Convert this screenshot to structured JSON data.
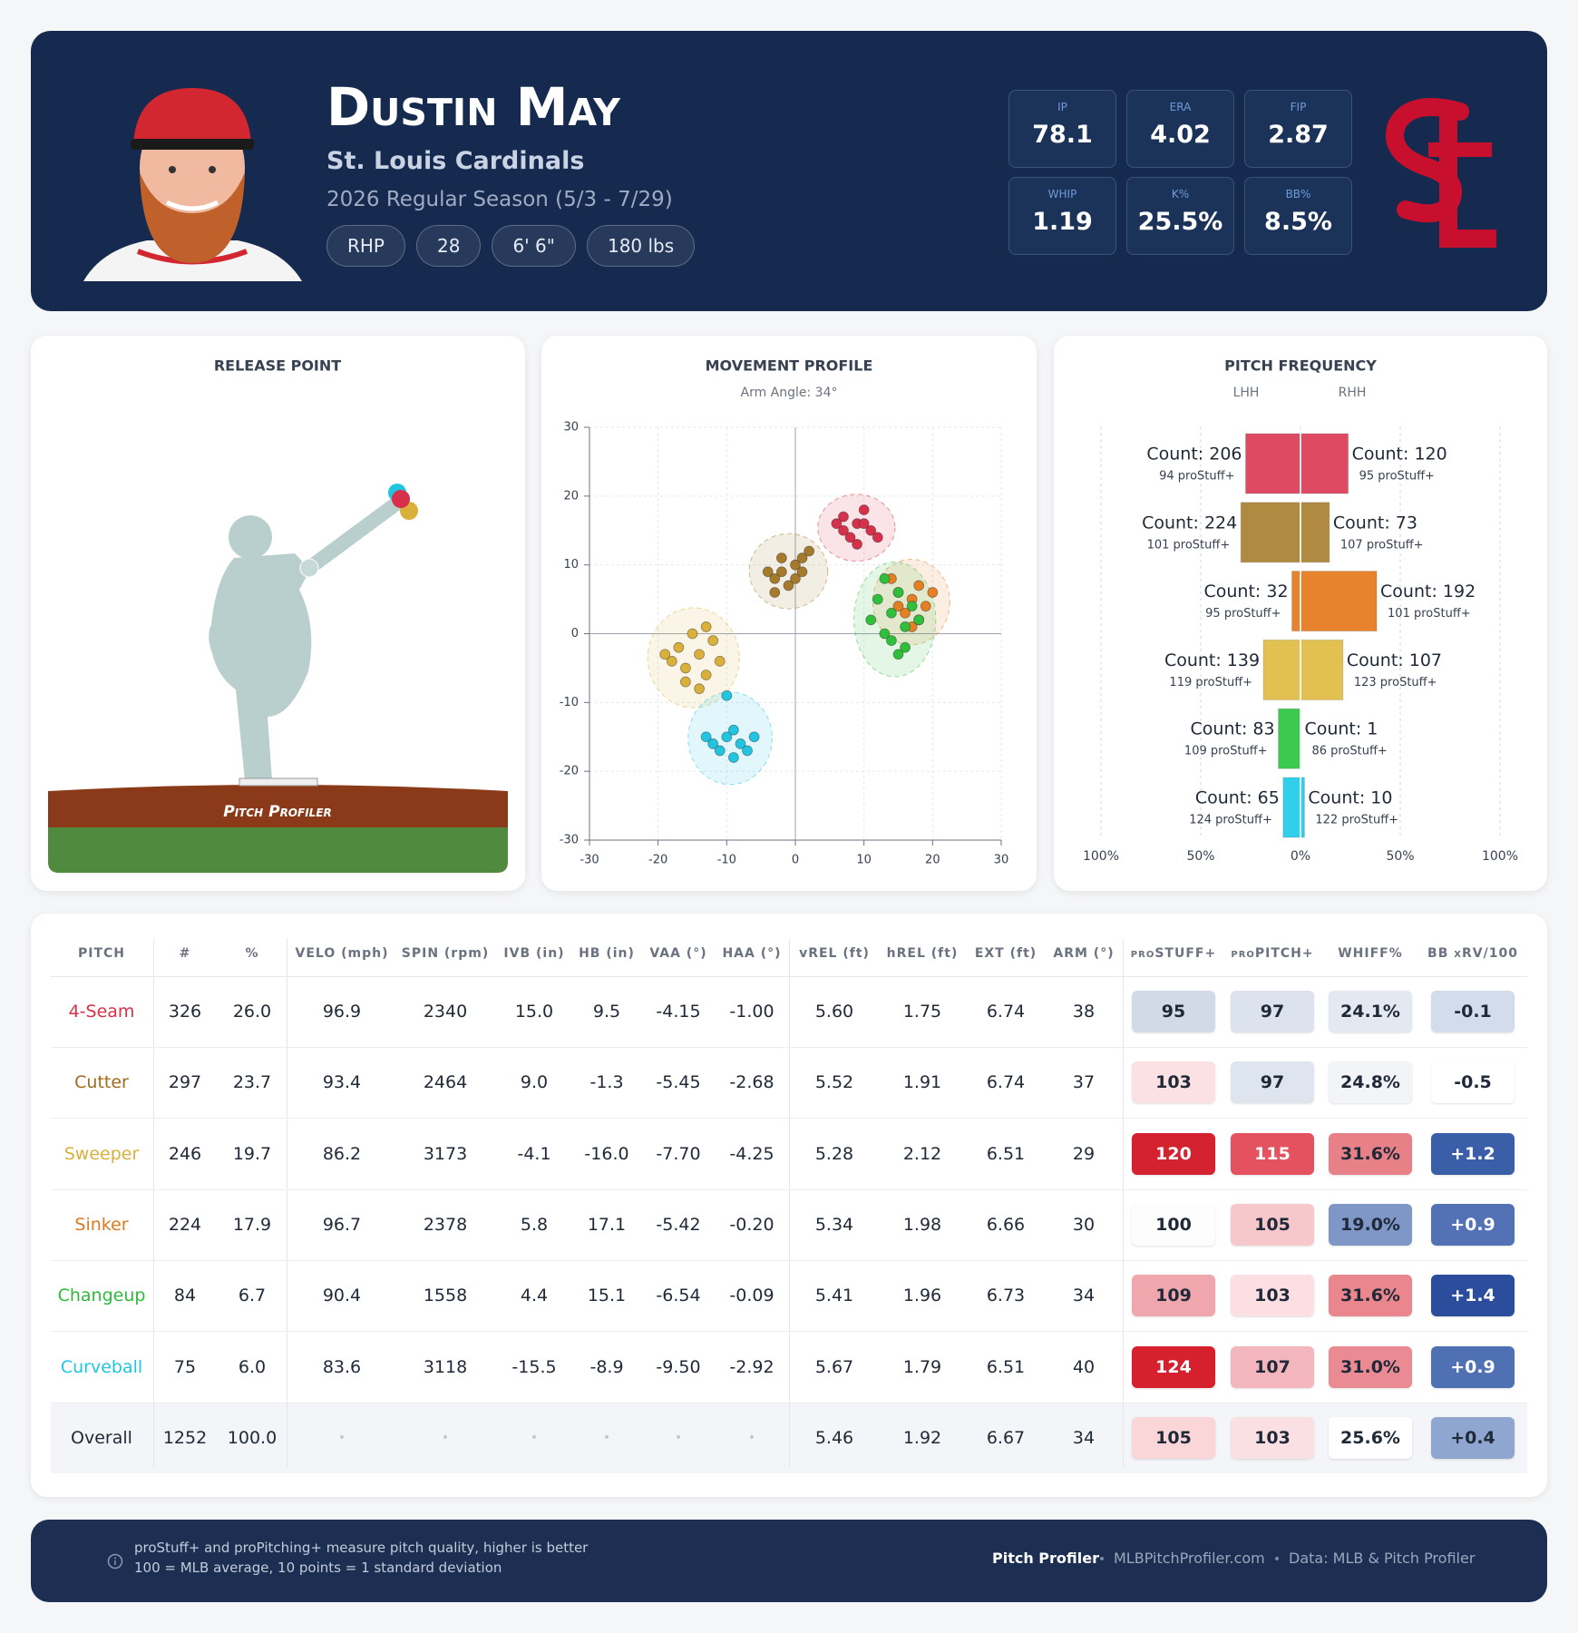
{
  "header": {
    "name": "Dustin May",
    "team": "St. Louis Cardinals",
    "season": "2026 Regular Season (5/3 - 7/29)",
    "chips": [
      "RHP",
      "28",
      "6' 6\"",
      "180 lbs"
    ],
    "stats": [
      {
        "label": "IP",
        "value": "78.1"
      },
      {
        "label": "ERA",
        "value": "4.02"
      },
      {
        "label": "FIP",
        "value": "2.87"
      },
      {
        "label": "WHIP",
        "value": "1.19"
      },
      {
        "label": "K%",
        "value": "25.5%"
      },
      {
        "label": "BB%",
        "value": "8.5%"
      }
    ]
  },
  "release_point": {
    "title": "RELEASE POINT",
    "logo": "Pitch Profiler"
  },
  "chart_data": [
    {
      "type": "scatter",
      "title": "MOVEMENT PROFILE",
      "subtitle": "Arm Angle: 34°",
      "xlim": [
        -30,
        30
      ],
      "ylim": [
        -30,
        30
      ],
      "xticks": [
        -30,
        -20,
        -10,
        0,
        10,
        20,
        30
      ],
      "yticks": [
        -30,
        -20,
        -10,
        0,
        10,
        20,
        30
      ],
      "grid": true,
      "series": [
        {
          "color": "#d6304a",
          "x": [
            7,
            9,
            11,
            8,
            10,
            6,
            12,
            9,
            7,
            10
          ],
          "y": [
            17,
            16,
            15,
            14,
            18,
            16,
            14,
            13,
            15,
            16
          ]
        },
        {
          "color": "#a57a2c",
          "x": [
            -2,
            0,
            -3,
            1,
            -1,
            -4,
            2,
            -2,
            0,
            -3,
            1
          ],
          "y": [
            9,
            10,
            8,
            11,
            7,
            9,
            12,
            11,
            8,
            6,
            9
          ]
        },
        {
          "color": "#d9b13a",
          "x": [
            -17,
            -14,
            -16,
            -13,
            -18,
            -15,
            -12,
            -16,
            -14,
            -19,
            -11,
            -13
          ],
          "y": [
            -2,
            -3,
            -5,
            -6,
            -4,
            0,
            -1,
            -7,
            -8,
            -3,
            -4,
            1
          ]
        },
        {
          "color": "#e67e22",
          "x": [
            15,
            17,
            18,
            16,
            19,
            14,
            17,
            20,
            15,
            18
          ],
          "y": [
            6,
            5,
            7,
            3,
            4,
            8,
            1,
            6,
            4,
            2
          ]
        },
        {
          "color": "#2fbf3a",
          "x": [
            12,
            14,
            16,
            13,
            15,
            17,
            11,
            14,
            16,
            13,
            18,
            15
          ],
          "y": [
            5,
            3,
            1,
            8,
            6,
            4,
            2,
            -1,
            -2,
            0,
            2,
            -3
          ]
        },
        {
          "color": "#22c5e0",
          "x": [
            -10,
            -8,
            -12,
            -7,
            -9,
            -11,
            -6,
            -9,
            -13,
            -10
          ],
          "y": [
            -15,
            -16,
            -16,
            -17,
            -14,
            -17,
            -15,
            -18,
            -15,
            -9
          ]
        }
      ]
    },
    {
      "type": "diverging_bar",
      "title": "PITCH FREQUENCY",
      "xlim": [
        -100,
        100
      ],
      "xticks": [
        {
          "value": -100,
          "label": "100%"
        },
        {
          "value": -50,
          "label": "50%"
        },
        {
          "value": 0,
          "label": "0%"
        },
        {
          "value": 50,
          "label": "50%"
        },
        {
          "value": 100,
          "label": "100%"
        }
      ],
      "colors": [
        "#df4a63",
        "#b08a40",
        "#e6832c",
        "#e3c052",
        "#3cc94f",
        "#30d0ec"
      ],
      "series": [
        {
          "name": "LHH",
          "values": [
            27.5,
            29.9,
            4.3,
            18.6,
            11.1,
            8.7
          ],
          "count_labels": [
            "Count: 206",
            "Count: 224",
            "Count: 32",
            "Count: 139",
            "Count: 83",
            "Count: 65"
          ],
          "stuff_labels": [
            "94 proStuff+",
            "101 proStuff+",
            "95 proStuff+",
            "119 proStuff+",
            "109 proStuff+",
            "124 proStuff+"
          ]
        },
        {
          "name": "RHH",
          "values": [
            23.9,
            14.5,
            38.2,
            21.3,
            0.2,
            2.0
          ],
          "count_labels": [
            "Count: 120",
            "Count: 73",
            "Count: 192",
            "Count: 107",
            "Count: 1",
            "Count: 10"
          ],
          "stuff_labels": [
            "95 proStuff+",
            "107 proStuff+",
            "101 proStuff+",
            "123 proStuff+",
            "86 proStuff+",
            "122 proStuff+"
          ]
        }
      ]
    }
  ],
  "table": {
    "columns": [
      "PITCH",
      "#",
      "%",
      "VELO (mph)",
      "SPIN (rpm)",
      "IVB (in)",
      "HB (in)",
      "VAA (°)",
      "HAA (°)",
      "vREL (ft)",
      "hREL (ft)",
      "EXT (ft)",
      "ARM (°)",
      "proSTUFF+",
      "proPITCH+",
      "WHIFF%",
      "BB xRV/100"
    ],
    "rows": [
      [
        "4-Seam",
        "326",
        "26.0",
        "96.9",
        "2340",
        "15.0",
        "9.5",
        "-4.15",
        "-1.00",
        "5.60",
        "1.75",
        "6.74",
        "38",
        "95",
        "97",
        "24.1%",
        "-0.1"
      ],
      [
        "Cutter",
        "297",
        "23.7",
        "93.4",
        "2464",
        "9.0",
        "-1.3",
        "-5.45",
        "-2.68",
        "5.52",
        "1.91",
        "6.74",
        "37",
        "103",
        "97",
        "24.8%",
        "-0.5"
      ],
      [
        "Sweeper",
        "246",
        "19.7",
        "86.2",
        "3173",
        "-4.1",
        "-16.0",
        "-7.70",
        "-4.25",
        "5.28",
        "2.12",
        "6.51",
        "29",
        "120",
        "115",
        "31.6%",
        "+1.2"
      ],
      [
        "Sinker",
        "224",
        "17.9",
        "96.7",
        "2378",
        "5.8",
        "17.1",
        "-5.42",
        "-0.20",
        "5.34",
        "1.98",
        "6.66",
        "30",
        "100",
        "105",
        "19.0%",
        "+0.9"
      ],
      [
        "Changeup",
        "84",
        "6.7",
        "90.4",
        "1558",
        "4.4",
        "15.1",
        "-6.54",
        "-0.09",
        "5.41",
        "1.96",
        "6.73",
        "34",
        "109",
        "103",
        "31.6%",
        "+1.4"
      ],
      [
        "Curveball",
        "75",
        "6.0",
        "83.6",
        "3118",
        "-15.5",
        "-8.9",
        "-9.50",
        "-2.92",
        "5.67",
        "1.79",
        "6.51",
        "40",
        "124",
        "107",
        "31.0%",
        "+0.9"
      ],
      [
        "Overall",
        "1252",
        "100.0",
        "•",
        "•",
        "•",
        "•",
        "•",
        "•",
        "5.46",
        "1.92",
        "6.67",
        "34",
        "105",
        "103",
        "25.6%",
        "+0.4"
      ]
    ],
    "name_colors": [
      "#d6304a",
      "#a06a1a",
      "#d9b13a",
      "#e0781e",
      "#2cbb3a",
      "#22c5e0",
      "#1f2937"
    ],
    "badge_colors": [
      [
        [
          "#d2dae8",
          "#1f2937"
        ],
        [
          "#dde3ee",
          "#1f2937"
        ],
        [
          "#e4e8f0",
          "#1f2937"
        ],
        [
          "#d3dceb",
          "#1f2937"
        ]
      ],
      [
        [
          "#fbe1e3",
          "#1f2937"
        ],
        [
          "#dfe5ef",
          "#1f2937"
        ],
        [
          "#f2f4f8",
          "#1f2937"
        ],
        [
          "#ffffff",
          "#1f2937"
        ]
      ],
      [
        [
          "#d42230",
          "#ffffff"
        ],
        [
          "#e3525e",
          "#ffffff"
        ],
        [
          "#e88088",
          "#1f2937"
        ],
        [
          "#3b5ea8",
          "#ffffff"
        ]
      ],
      [
        [
          "#fdfdfd",
          "#1f2937"
        ],
        [
          "#f6c7cb",
          "#1f2937"
        ],
        [
          "#7f97c7",
          "#1f2937"
        ],
        [
          "#5272b5",
          "#ffffff"
        ]
      ],
      [
        [
          "#f0a6ad",
          "#1f2937"
        ],
        [
          "#fbdfe2",
          "#1f2937"
        ],
        [
          "#ea868e",
          "#1f2937"
        ],
        [
          "#2c4c9c",
          "#ffffff"
        ]
      ],
      [
        [
          "#d6202e",
          "#ffffff"
        ],
        [
          "#f3b6bc",
          "#1f2937"
        ],
        [
          "#ea8a92",
          "#1f2937"
        ],
        [
          "#5070b4",
          "#ffffff"
        ]
      ],
      [
        [
          "#fbd6d9",
          "#1f2937"
        ],
        [
          "#fbe0e3",
          "#1f2937"
        ],
        [
          "#ffffff",
          "#1f2937"
        ],
        [
          "#8fa6d1",
          "#1f2937"
        ]
      ]
    ]
  },
  "footer": {
    "note_lines": [
      "proStuff+ and proPitching+ measure pitch quality, higher is better",
      "100 = MLB average, 10 points = 1 standard deviation"
    ],
    "brand": "Pitch Profiler",
    "site": "MLBPitchProfiler.com",
    "source": "Data: MLB & Pitch Profiler"
  }
}
